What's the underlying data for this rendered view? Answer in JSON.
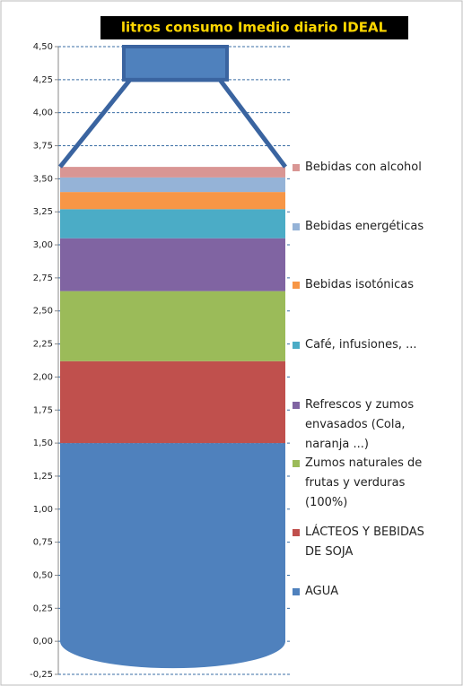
{
  "chart_data": {
    "type": "stacked-bar",
    "title": "litros consumo  Imedio diario IDEAL",
    "categories": [
      null
    ],
    "series": [
      {
        "name": "AGUA",
        "color": "#4f81bd",
        "values": [
          1.5
        ]
      },
      {
        "name": "LÁCTEOS Y BEBIDAS DE SOJA",
        "color": "#c0504d",
        "values": [
          0.62
        ]
      },
      {
        "name": "Zumos naturales de frutas y verduras (100%)",
        "color": "#9bbb59",
        "values": [
          0.53
        ]
      },
      {
        "name": "Refrescos y zumos envasados (Cola, naranja ...)",
        "color": "#8064a2",
        "values": [
          0.4
        ]
      },
      {
        "name": "Café, infusiones, ...",
        "color": "#4bacc6",
        "values": [
          0.22
        ]
      },
      {
        "name": "Bebidas isotónicas",
        "color": "#f79646",
        "values": [
          0.13
        ]
      },
      {
        "name": "Bebidas energéticas",
        "color": "#95b3d7",
        "values": [
          0.11
        ]
      },
      {
        "name": "Bebidas con alcohol",
        "color": "#d99694",
        "values": [
          0.08
        ]
      }
    ],
    "ylim": [
      -0.25,
      4.5
    ],
    "yticks": [
      {
        "value": -0.25,
        "label": "-0,25"
      },
      {
        "value": 0,
        "label": "0,00"
      },
      {
        "value": 0.25,
        "label": "0,25"
      },
      {
        "value": 0.5,
        "label": "0,50"
      },
      {
        "value": 0.75,
        "label": "0,75"
      },
      {
        "value": 1,
        "label": "1,00"
      },
      {
        "value": 1.25,
        "label": "1,25"
      },
      {
        "value": 1.5,
        "label": "1,50"
      },
      {
        "value": 1.75,
        "label": "1,75"
      },
      {
        "value": 2,
        "label": "2,00"
      },
      {
        "value": 2.25,
        "label": "2,25"
      },
      {
        "value": 2.5,
        "label": "2,50"
      },
      {
        "value": 2.75,
        "label": "2,75"
      },
      {
        "value": 3,
        "label": "3,00"
      },
      {
        "value": 3.25,
        "label": "3,25"
      },
      {
        "value": 3.5,
        "label": "3,50"
      },
      {
        "value": 3.75,
        "label": "3,75"
      },
      {
        "value": 4,
        "label": "4,00"
      },
      {
        "value": 4.25,
        "label": "4,25"
      },
      {
        "value": 4.5,
        "label": "4,50"
      }
    ],
    "grid": true
  }
}
